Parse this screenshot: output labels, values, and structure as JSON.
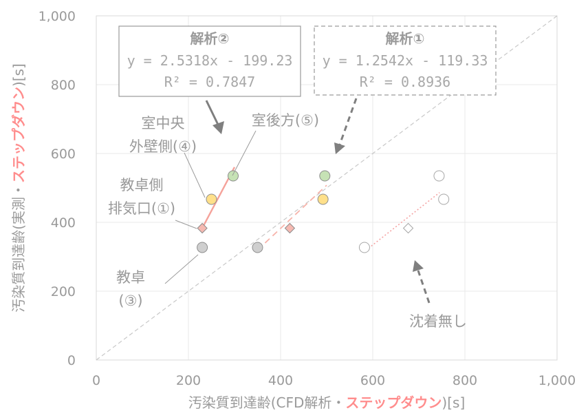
{
  "chart_data": {
    "type": "scatter",
    "x_ticks": [
      "0",
      "200",
      "400",
      "600",
      "800",
      "1,000"
    ],
    "y_ticks": [
      "0",
      "200",
      "400",
      "600",
      "800",
      "1,000"
    ],
    "xlim": [
      0,
      1000
    ],
    "ylim": [
      0,
      1000
    ],
    "grid": true,
    "xlabel": {
      "pre": "汚染質到達齢(CFD解析・",
      "accent": "ステップダウン",
      "post": ")[s]"
    },
    "ylabel": {
      "pre": "汚染質到達齢(実測・",
      "accent": "ステップダウン",
      "post": ")[s]"
    },
    "colors": {
      "grey": "#cfcfcf",
      "yellow": "#ffe08a",
      "green": "#c6e2b5",
      "salmon": "#f5b9b1",
      "accent": "#ff8d8d",
      "text": "#9a9a9a"
    },
    "series": [
      {
        "analysis": "解析②",
        "points": [
          {
            "x": 230,
            "y": 327,
            "marker": "circle",
            "color": "grey"
          },
          {
            "x": 230,
            "y": 383,
            "marker": "diamond",
            "color": "salmon"
          },
          {
            "x": 250,
            "y": 467,
            "marker": "circle",
            "color": "yellow"
          },
          {
            "x": 297,
            "y": 535,
            "marker": "circle",
            "color": "green"
          }
        ],
        "trendline": {
          "x": [
            230,
            300
          ],
          "style": "solid"
        }
      },
      {
        "analysis": "解析①",
        "points": [
          {
            "x": 350,
            "y": 327,
            "marker": "circle",
            "color": "grey"
          },
          {
            "x": 420,
            "y": 383,
            "marker": "diamond",
            "color": "salmon"
          },
          {
            "x": 492,
            "y": 467,
            "marker": "circle",
            "color": "yellow"
          },
          {
            "x": 496,
            "y": 535,
            "marker": "circle",
            "color": "green"
          }
        ],
        "trendline": {
          "x": [
            350,
            500
          ],
          "style": "dashed"
        }
      },
      {
        "analysis": "沈着無し",
        "points": [
          {
            "x": 582,
            "y": 327,
            "marker": "circle",
            "color": "white"
          },
          {
            "x": 677,
            "y": 383,
            "marker": "diamond",
            "color": "white"
          },
          {
            "x": 754,
            "y": 467,
            "marker": "circle",
            "color": "white"
          },
          {
            "x": 744,
            "y": 535,
            "marker": "circle",
            "color": "white"
          }
        ],
        "trendline": {
          "x": [
            585,
            745
          ],
          "style": "dotted"
        }
      }
    ],
    "equation_boxes": [
      {
        "title": "解析②",
        "equation": "y = 2.5318x - 199.23",
        "r2": "R² = 0.7847"
      },
      {
        "title": "解析①",
        "equation": "y = 1.2542x - 119.33",
        "r2": "R² = 0.8936"
      }
    ],
    "annotations": {
      "center": [
        "室中央",
        "外壁側(④)"
      ],
      "back": "室後方(⑤)",
      "exhaust": [
        "教卓側",
        "排気口(①)"
      ],
      "desk": [
        "教卓",
        "(③)"
      ],
      "no_deposit": "沈着無し"
    }
  }
}
